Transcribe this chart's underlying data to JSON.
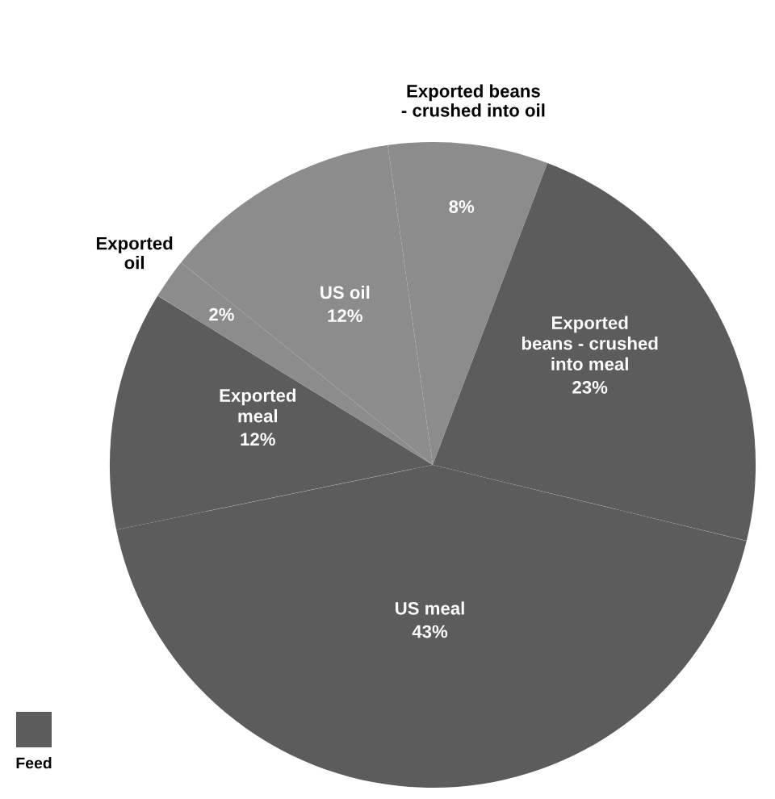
{
  "chart_data": {
    "type": "pie",
    "categories": [
      "Exported beans\n- crushed into oil",
      "Exported\nbeans - crushed\ninto meal",
      "US meal",
      "Exported\nmeal",
      "Exported\noil",
      "US oil"
    ],
    "values": [
      8,
      23,
      43,
      12,
      2,
      12
    ],
    "colors": [
      "#8c8c8c",
      "#5c5c5c",
      "#5c5c5c",
      "#5c5c5c",
      "#8c8c8c",
      "#8c8c8c"
    ],
    "value_labels": [
      "8%",
      "23%",
      "43%",
      "12%",
      "2%",
      "12%"
    ],
    "annotations": [
      "Feed"
    ]
  }
}
